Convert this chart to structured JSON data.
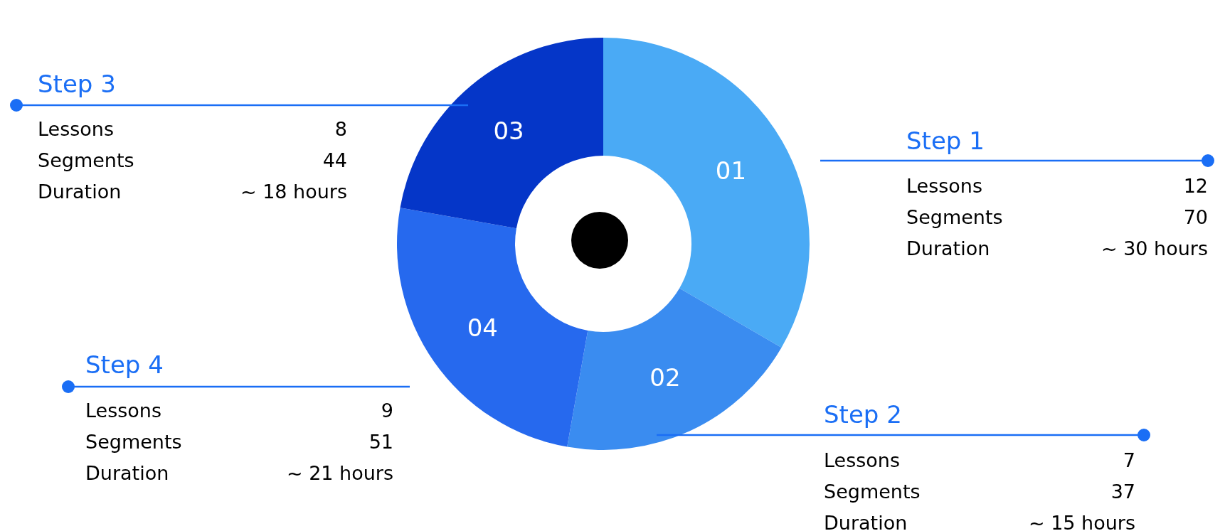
{
  "chart_data": {
    "type": "donut",
    "categories": [
      "01",
      "02",
      "04",
      "03"
    ],
    "values": [
      33.4,
      19.4,
      25,
      22.2
    ],
    "colors": [
      "#4aaaf5",
      "#3a8cf0",
      "#2669ee",
      "#0536c8"
    ],
    "annotations": [
      "Step 1",
      "Lessons",
      "12",
      "Segments",
      "70",
      "Duration",
      "~ 30 hours",
      "Step 2",
      "Lessons",
      "7",
      "Segments",
      "37",
      "Duration",
      "~ 15 hours",
      "Step 4",
      "Lessons",
      "9",
      "Segments",
      "51",
      "Duration",
      "~ 21 hours",
      "Step 3",
      "Lessons",
      "8",
      "Segments",
      "44",
      "Duration",
      "~ 18 hours"
    ]
  }
}
